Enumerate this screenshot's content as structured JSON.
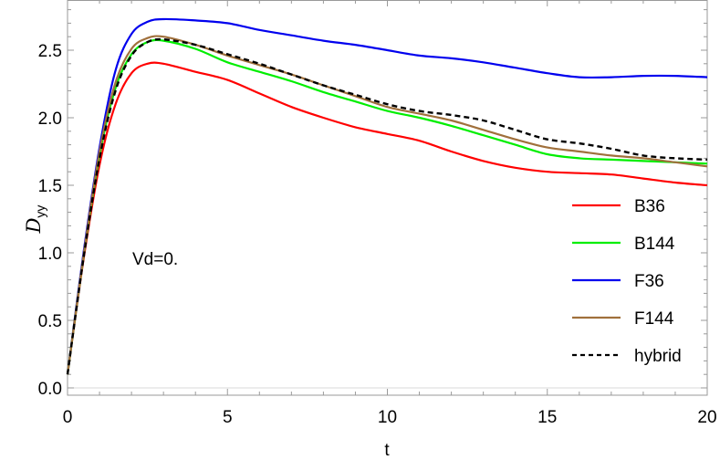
{
  "chart_data": {
    "type": "line",
    "title": "",
    "xlabel": "t",
    "ylabel": "D_yy",
    "ylabel_main": "D",
    "ylabel_sub": "yy",
    "xlim": [
      0,
      20
    ],
    "ylim": [
      0,
      2.85
    ],
    "x_ticks": [
      0,
      5,
      10,
      15,
      20
    ],
    "x_tick_labels": [
      "0",
      "5",
      "10",
      "15",
      "20"
    ],
    "y_ticks": [
      0.0,
      0.5,
      1.0,
      1.5,
      2.0,
      2.5
    ],
    "y_tick_labels": [
      "0.0",
      "0.5",
      "1.0",
      "1.5",
      "2.0",
      "2.5"
    ],
    "grid": false,
    "frame": true,
    "legend_position": "lower right inside",
    "annotation": "Vd=0.",
    "x": [
      0,
      0.5,
      1,
      1.5,
      2,
      2.5,
      3,
      4,
      5,
      6,
      7,
      8,
      9,
      10,
      11,
      12,
      13,
      14,
      15,
      16,
      17,
      18,
      19,
      20
    ],
    "series": [
      {
        "name": "B36",
        "color": "#ff0000",
        "dash": false,
        "values": [
          0.1,
          0.95,
          1.65,
          2.1,
          2.33,
          2.4,
          2.4,
          2.34,
          2.28,
          2.18,
          2.08,
          2.0,
          1.93,
          1.88,
          1.83,
          1.75,
          1.68,
          1.63,
          1.6,
          1.59,
          1.58,
          1.55,
          1.52,
          1.5
        ]
      },
      {
        "name": "B144",
        "color": "#00ee00",
        "dash": false,
        "values": [
          0.1,
          0.97,
          1.72,
          2.22,
          2.47,
          2.56,
          2.57,
          2.51,
          2.41,
          2.34,
          2.27,
          2.19,
          2.12,
          2.05,
          2.0,
          1.94,
          1.87,
          1.8,
          1.73,
          1.7,
          1.69,
          1.68,
          1.67,
          1.66
        ]
      },
      {
        "name": "F36",
        "color": "#0000ee",
        "dash": false,
        "values": [
          0.1,
          1.0,
          1.78,
          2.35,
          2.62,
          2.71,
          2.73,
          2.72,
          2.7,
          2.65,
          2.61,
          2.57,
          2.54,
          2.5,
          2.46,
          2.44,
          2.41,
          2.37,
          2.33,
          2.3,
          2.3,
          2.31,
          2.31,
          2.3
        ]
      },
      {
        "name": "F144",
        "color": "#a0703c",
        "dash": false,
        "values": [
          0.1,
          0.98,
          1.75,
          2.26,
          2.51,
          2.59,
          2.6,
          2.54,
          2.46,
          2.39,
          2.32,
          2.24,
          2.16,
          2.08,
          2.03,
          1.98,
          1.91,
          1.84,
          1.78,
          1.75,
          1.72,
          1.7,
          1.67,
          1.64
        ]
      },
      {
        "name": "hybrid",
        "color": "#000000",
        "dash": true,
        "values": [
          0.1,
          0.96,
          1.7,
          2.2,
          2.46,
          2.56,
          2.58,
          2.54,
          2.47,
          2.4,
          2.32,
          2.24,
          2.17,
          2.1,
          2.05,
          2.02,
          1.98,
          1.91,
          1.84,
          1.81,
          1.77,
          1.72,
          1.7,
          1.69
        ]
      }
    ]
  }
}
